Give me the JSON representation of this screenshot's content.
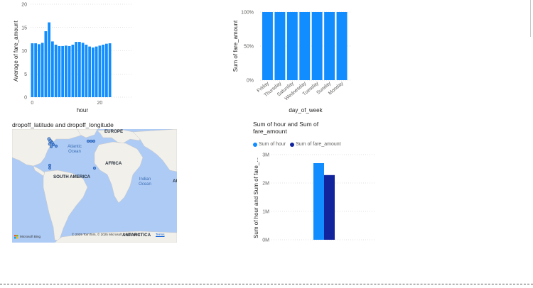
{
  "charts": {
    "hourly": {
      "ylabel": "Average of fare_amount",
      "xlabel": "hour",
      "y_ticks": [
        "0",
        "5",
        "10",
        "15",
        "20"
      ],
      "x_ticks": [
        "0",
        "20"
      ]
    },
    "weekday": {
      "ylabel": "Sum of fare_amount",
      "xlabel": "day_of_week",
      "y_ticks": [
        "0%",
        "50%",
        "100%"
      ],
      "categories": [
        "Friday",
        "Thursday",
        "Saturday",
        "Wednesday",
        "Tuesday",
        "Sunday",
        "Monday"
      ]
    },
    "map": {
      "title": "dropoff_latitude and dropoff_longitude",
      "labels": {
        "europe": "EUROPE",
        "africa": "AFRICA",
        "south_america": "SOUTH AMERICA",
        "antarctica": "ANTARCTICA",
        "au": "AU"
      },
      "oceans": {
        "atlantic": "Atlantic Ocean",
        "indian": "Indian Ocean"
      },
      "footer": {
        "brand": "Microsoft Bing",
        "copyright": "© 2025 TomTom, © 2025 Microsoft Corporation",
        "terms": "Terms"
      }
    },
    "sum_hour": {
      "title": "Sum of hour and Sum of fare_amount",
      "ylabel": "Sum of hour and Sum of fare_...",
      "legend": [
        "Sum of hour",
        "Sum of fare_amount"
      ],
      "y_ticks": [
        "0M",
        "1M",
        "2M",
        "3M"
      ]
    }
  },
  "colors": {
    "primary_blue": "#118DFF",
    "dark_blue": "#12239E",
    "map_land": "#f2f0ea",
    "map_water": "#aecbf5"
  },
  "chart_data": [
    {
      "type": "bar",
      "x": [
        0,
        1,
        2,
        3,
        4,
        5,
        6,
        7,
        8,
        9,
        10,
        11,
        12,
        13,
        14,
        15,
        16,
        17,
        18,
        19,
        20,
        21,
        22,
        23
      ],
      "values": [
        11.6,
        11.6,
        11.4,
        11.7,
        14.2,
        16.1,
        12.0,
        11.3,
        11.0,
        11.0,
        11.1,
        11.0,
        11.3,
        11.9,
        11.9,
        11.7,
        11.3,
        10.9,
        10.7,
        10.9,
        11.1,
        11.3,
        11.5,
        11.6
      ],
      "xlabel": "hour",
      "ylabel": "Average of fare_amount",
      "ylim": [
        0,
        20
      ],
      "grid": true
    },
    {
      "type": "bar",
      "categories": [
        "Friday",
        "Thursday",
        "Saturday",
        "Wednesday",
        "Tuesday",
        "Sunday",
        "Monday"
      ],
      "values": [
        100,
        100,
        100,
        100,
        100,
        100,
        100
      ],
      "xlabel": "day_of_week",
      "ylabel": "Sum of fare_amount",
      "ylim": [
        0,
        100
      ],
      "grid": true
    },
    {
      "type": "bar",
      "categories": [
        ""
      ],
      "series": [
        {
          "name": "Sum of hour",
          "values": [
            2.7
          ]
        },
        {
          "name": "Sum of fare_amount",
          "values": [
            2.28
          ]
        }
      ],
      "title": "Sum of hour and Sum of fare_amount",
      "ylabel": "Sum of hour and Sum of fare_...",
      "ylim": [
        0,
        3
      ],
      "legend": "top-left",
      "grid": true
    }
  ]
}
